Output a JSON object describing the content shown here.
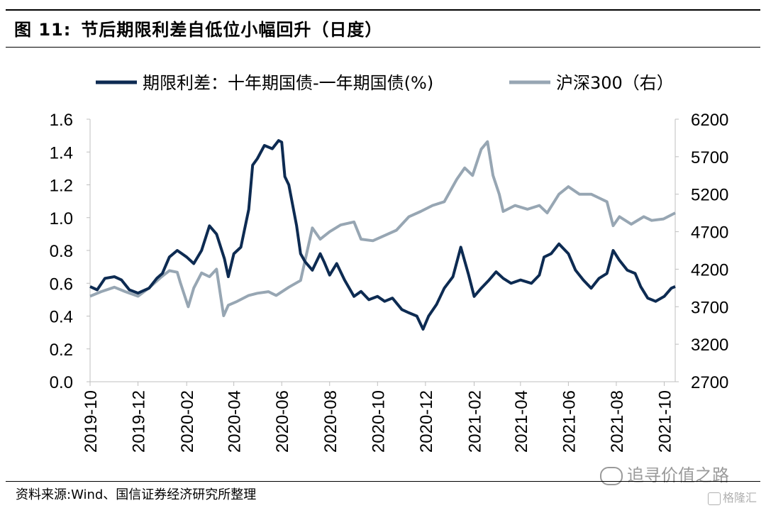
{
  "header": {
    "figure_label": "图 11:",
    "title_text": "节后期限利差自低位小幅回升（日度）"
  },
  "footer": {
    "source": "资料来源:Wind、国信证券经济研究所整理"
  },
  "watermark": {
    "text": "追寻价值之路",
    "brand": "格隆汇"
  },
  "colors": {
    "spread": "#0d2b52",
    "csi300": "#97a6b3",
    "axis": "#000000"
  },
  "chart_data": {
    "type": "line",
    "title": "节后期限利差自低位小幅回升（日度）",
    "x_tick_labels": [
      "2019-10",
      "2019-12",
      "2020-02",
      "2020-04",
      "2020-06",
      "2020-08",
      "2020-10",
      "2020-12",
      "2021-02",
      "2021-04",
      "2021-06",
      "2021-08",
      "2021-10"
    ],
    "x_range": [
      "2019-10-01",
      "2021-10-15"
    ],
    "y_left": {
      "ylim": [
        0.0,
        1.6
      ],
      "ticks": [
        "0.0",
        "0.2",
        "0.4",
        "0.6",
        "0.8",
        "1.0",
        "1.2",
        "1.4",
        "1.6"
      ]
    },
    "y_right": {
      "ylim": [
        2700,
        6200
      ],
      "ticks": [
        "2700",
        "3200",
        "3700",
        "4200",
        "4700",
        "5200",
        "5700",
        "6200"
      ]
    },
    "legend": {
      "position": "top"
    },
    "series": [
      {
        "name": "期限利差：十年期国债-一年期国债(%)",
        "axis": "left",
        "color": "#0d2b52",
        "points": [
          [
            "2019-10-01",
            0.58
          ],
          [
            "2019-10-10",
            0.56
          ],
          [
            "2019-10-20",
            0.63
          ],
          [
            "2019-11-01",
            0.64
          ],
          [
            "2019-11-10",
            0.62
          ],
          [
            "2019-11-20",
            0.56
          ],
          [
            "2019-12-01",
            0.54
          ],
          [
            "2019-12-15",
            0.57
          ],
          [
            "2019-12-25",
            0.63
          ],
          [
            "2020-01-01",
            0.66
          ],
          [
            "2020-01-10",
            0.76
          ],
          [
            "2020-01-20",
            0.8
          ],
          [
            "2020-02-01",
            0.76
          ],
          [
            "2020-02-10",
            0.72
          ],
          [
            "2020-02-20",
            0.8
          ],
          [
            "2020-03-01",
            0.95
          ],
          [
            "2020-03-10",
            0.9
          ],
          [
            "2020-03-20",
            0.75
          ],
          [
            "2020-03-25",
            0.64
          ],
          [
            "2020-04-01",
            0.78
          ],
          [
            "2020-04-10",
            0.82
          ],
          [
            "2020-04-20",
            1.05
          ],
          [
            "2020-04-25",
            1.32
          ],
          [
            "2020-05-01",
            1.36
          ],
          [
            "2020-05-10",
            1.44
          ],
          [
            "2020-05-20",
            1.42
          ],
          [
            "2020-05-28",
            1.47
          ],
          [
            "2020-06-01",
            1.46
          ],
          [
            "2020-06-05",
            1.25
          ],
          [
            "2020-06-10",
            1.2
          ],
          [
            "2020-06-20",
            0.95
          ],
          [
            "2020-06-25",
            0.78
          ],
          [
            "2020-07-01",
            0.73
          ],
          [
            "2020-07-10",
            0.68
          ],
          [
            "2020-07-20",
            0.78
          ],
          [
            "2020-07-25",
            0.73
          ],
          [
            "2020-08-01",
            0.65
          ],
          [
            "2020-08-10",
            0.72
          ],
          [
            "2020-08-20",
            0.62
          ],
          [
            "2020-09-01",
            0.52
          ],
          [
            "2020-09-10",
            0.55
          ],
          [
            "2020-09-20",
            0.5
          ],
          [
            "2020-10-01",
            0.52
          ],
          [
            "2020-10-10",
            0.49
          ],
          [
            "2020-10-20",
            0.51
          ],
          [
            "2020-11-01",
            0.44
          ],
          [
            "2020-11-10",
            0.42
          ],
          [
            "2020-11-20",
            0.4
          ],
          [
            "2020-11-28",
            0.32
          ],
          [
            "2020-12-05",
            0.4
          ],
          [
            "2020-12-15",
            0.47
          ],
          [
            "2020-12-25",
            0.57
          ],
          [
            "2021-01-05",
            0.64
          ],
          [
            "2021-01-15",
            0.82
          ],
          [
            "2021-01-25",
            0.65
          ],
          [
            "2021-02-01",
            0.52
          ],
          [
            "2021-02-10",
            0.57
          ],
          [
            "2021-02-20",
            0.62
          ],
          [
            "2021-03-01",
            0.67
          ],
          [
            "2021-03-10",
            0.63
          ],
          [
            "2021-03-20",
            0.6
          ],
          [
            "2021-04-01",
            0.62
          ],
          [
            "2021-04-15",
            0.6
          ],
          [
            "2021-04-25",
            0.65
          ],
          [
            "2021-05-01",
            0.76
          ],
          [
            "2021-05-10",
            0.78
          ],
          [
            "2021-05-20",
            0.84
          ],
          [
            "2021-06-01",
            0.78
          ],
          [
            "2021-06-10",
            0.68
          ],
          [
            "2021-06-20",
            0.62
          ],
          [
            "2021-06-30",
            0.57
          ],
          [
            "2021-07-10",
            0.63
          ],
          [
            "2021-07-20",
            0.66
          ],
          [
            "2021-07-28",
            0.8
          ],
          [
            "2021-08-05",
            0.74
          ],
          [
            "2021-08-15",
            0.68
          ],
          [
            "2021-08-25",
            0.66
          ],
          [
            "2021-09-01",
            0.58
          ],
          [
            "2021-09-10",
            0.51
          ],
          [
            "2021-09-20",
            0.49
          ],
          [
            "2021-10-01",
            0.52
          ],
          [
            "2021-10-10",
            0.57
          ],
          [
            "2021-10-15",
            0.58
          ]
        ]
      },
      {
        "name": "沪深300（右）",
        "axis": "right",
        "color": "#97a6b3",
        "points": [
          [
            "2019-10-01",
            3840
          ],
          [
            "2019-10-15",
            3900
          ],
          [
            "2019-11-01",
            3960
          ],
          [
            "2019-11-15",
            3900
          ],
          [
            "2019-12-01",
            3840
          ],
          [
            "2019-12-15",
            3950
          ],
          [
            "2019-12-31",
            4100
          ],
          [
            "2020-01-10",
            4180
          ],
          [
            "2020-01-20",
            4160
          ],
          [
            "2020-01-24",
            4020
          ],
          [
            "2020-02-03",
            3700
          ],
          [
            "2020-02-10",
            3950
          ],
          [
            "2020-02-20",
            4150
          ],
          [
            "2020-03-01",
            4100
          ],
          [
            "2020-03-10",
            4200
          ],
          [
            "2020-03-19",
            3580
          ],
          [
            "2020-03-25",
            3720
          ],
          [
            "2020-04-05",
            3770
          ],
          [
            "2020-04-20",
            3850
          ],
          [
            "2020-05-01",
            3880
          ],
          [
            "2020-05-15",
            3900
          ],
          [
            "2020-05-25",
            3850
          ],
          [
            "2020-06-10",
            3960
          ],
          [
            "2020-06-25",
            4050
          ],
          [
            "2020-07-03",
            4420
          ],
          [
            "2020-07-10",
            4750
          ],
          [
            "2020-07-20",
            4600
          ],
          [
            "2020-08-01",
            4700
          ],
          [
            "2020-08-15",
            4790
          ],
          [
            "2020-09-01",
            4830
          ],
          [
            "2020-09-10",
            4600
          ],
          [
            "2020-09-25",
            4580
          ],
          [
            "2020-10-10",
            4650
          ],
          [
            "2020-10-25",
            4720
          ],
          [
            "2020-11-10",
            4900
          ],
          [
            "2020-11-25",
            4970
          ],
          [
            "2020-12-10",
            5050
          ],
          [
            "2020-12-25",
            5100
          ],
          [
            "2021-01-10",
            5400
          ],
          [
            "2021-01-20",
            5550
          ],
          [
            "2021-01-30",
            5450
          ],
          [
            "2021-02-10",
            5800
          ],
          [
            "2021-02-18",
            5900
          ],
          [
            "2021-02-25",
            5450
          ],
          [
            "2021-03-05",
            5200
          ],
          [
            "2021-03-10",
            4970
          ],
          [
            "2021-03-25",
            5050
          ],
          [
            "2021-04-10",
            5000
          ],
          [
            "2021-04-25",
            5050
          ],
          [
            "2021-05-05",
            4950
          ],
          [
            "2021-05-20",
            5200
          ],
          [
            "2021-06-01",
            5300
          ],
          [
            "2021-06-15",
            5200
          ],
          [
            "2021-06-30",
            5200
          ],
          [
            "2021-07-10",
            5150
          ],
          [
            "2021-07-20",
            5100
          ],
          [
            "2021-07-28",
            4780
          ],
          [
            "2021-08-05",
            4900
          ],
          [
            "2021-08-20",
            4800
          ],
          [
            "2021-09-05",
            4900
          ],
          [
            "2021-09-15",
            4850
          ],
          [
            "2021-09-30",
            4870
          ],
          [
            "2021-10-15",
            4950
          ]
        ]
      }
    ]
  }
}
